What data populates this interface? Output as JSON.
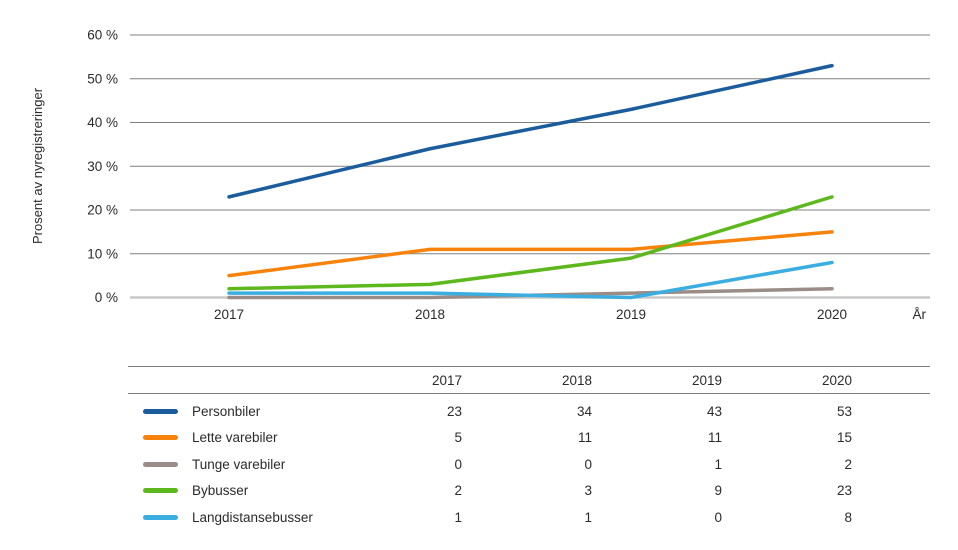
{
  "chart_data": {
    "type": "line",
    "x": [
      2017,
      2018,
      2019,
      2020
    ],
    "series": [
      {
        "name": "Personbiler",
        "values": [
          23,
          34,
          43,
          53
        ],
        "color": "#1a5c9c"
      },
      {
        "name": "Lette varebiler",
        "values": [
          5,
          11,
          11,
          15
        ],
        "color": "#f8830c"
      },
      {
        "name": "Tunge varebiler",
        "values": [
          0,
          0,
          1,
          2
        ],
        "color": "#9a8d87"
      },
      {
        "name": "Bybusser",
        "values": [
          2,
          3,
          9,
          23
        ],
        "color": "#5cb81c"
      },
      {
        "name": "Langdistansebusser",
        "values": [
          1,
          1,
          0,
          8
        ],
        "color": "#3aade1"
      }
    ],
    "title": "",
    "ylabel": "Prosent av nyregistreringer",
    "xlabel": "År",
    "ylim": [
      0,
      60
    ],
    "ytick_step": 10,
    "ytick_suffix": " %",
    "grid": true,
    "legend_position": "table-below"
  },
  "table": {
    "columns": [
      "2017",
      "2018",
      "2019",
      "2020"
    ]
  },
  "colors": {
    "gridline": "#808080",
    "zero_axis": "#c8c8c8",
    "text": "#2b2b2b",
    "table_line": "#808080"
  }
}
